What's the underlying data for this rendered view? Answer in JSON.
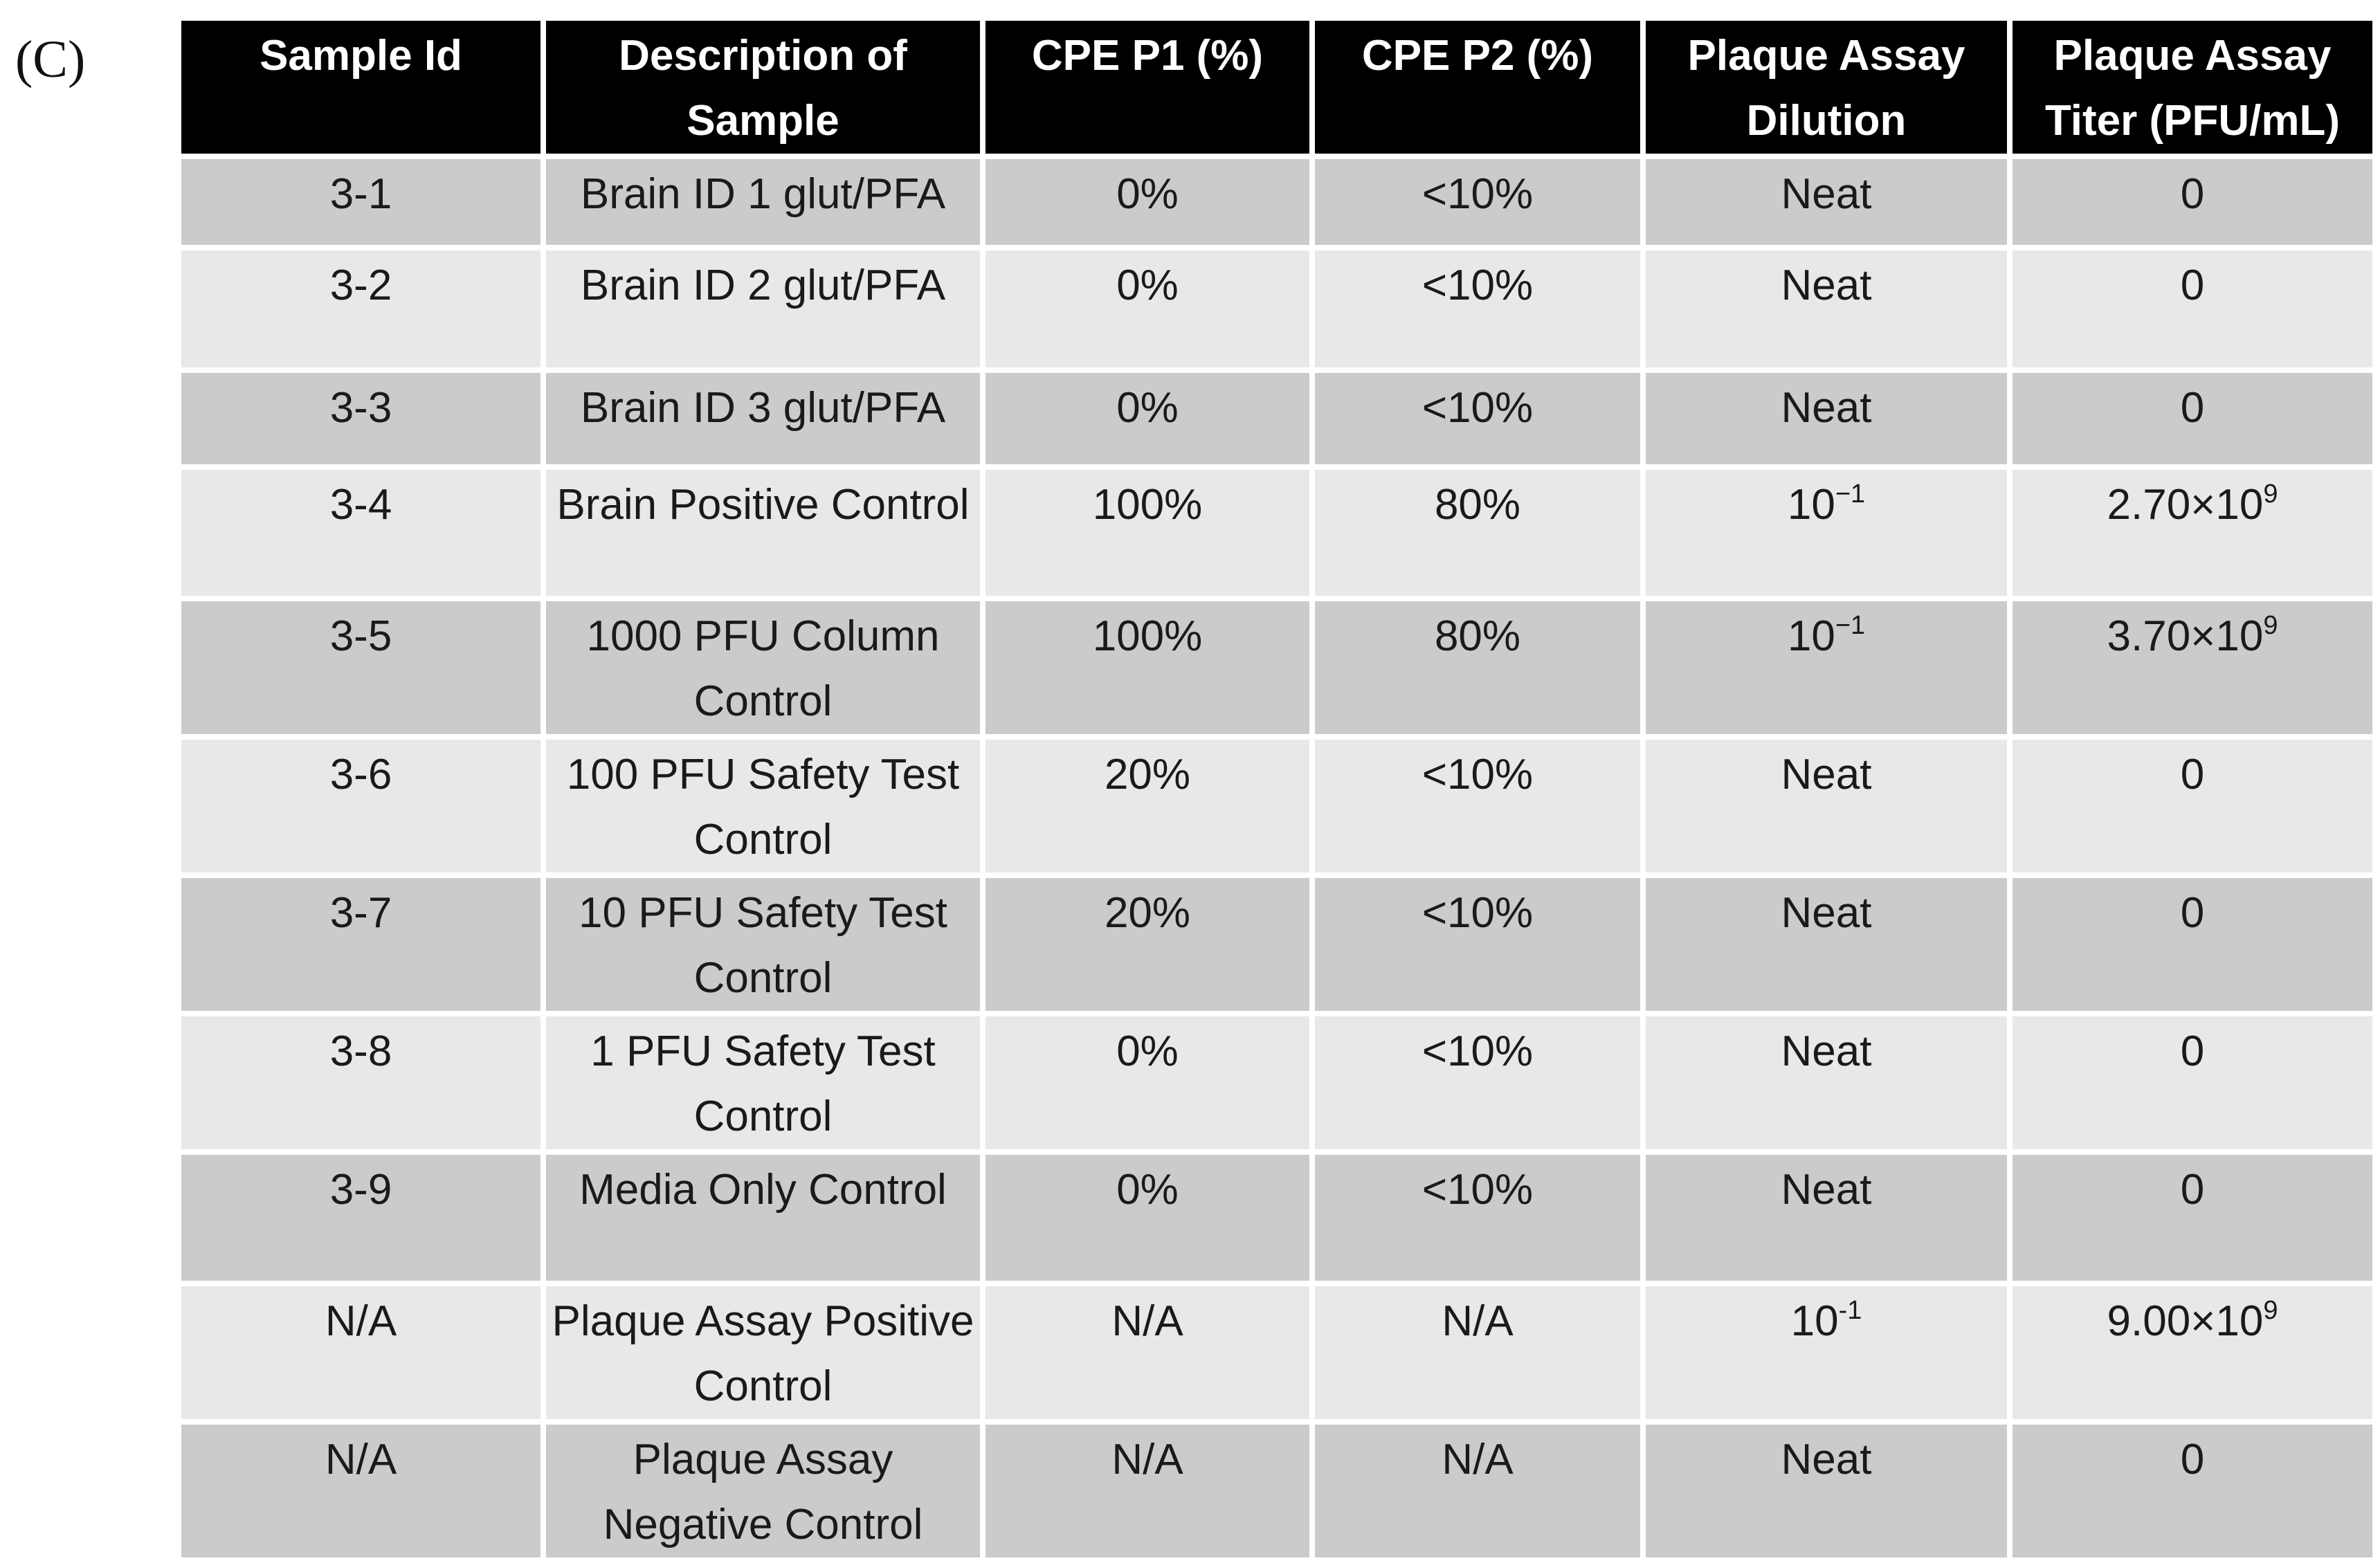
{
  "panel_label": "(C)",
  "columns": [
    "Sample Id",
    "Description of Sample",
    "CPE P1 (%)",
    "CPE P2 (%)",
    "Plaque Assay Dilution",
    "Plaque Assay Titer (PFU/mL)"
  ],
  "rows": [
    {
      "id": "3-1",
      "desc": "Brain ID 1 glut/PFA",
      "cpe1": "0%",
      "cpe2": "<10%",
      "dilution": "Neat",
      "dilution_exp": "",
      "titer": "0",
      "titer_exp": ""
    },
    {
      "id": "3-2",
      "desc": "Brain ID 2 glut/PFA",
      "cpe1": "0%",
      "cpe2": "<10%",
      "dilution": "Neat",
      "dilution_exp": "",
      "titer": "0",
      "titer_exp": ""
    },
    {
      "id": "3-3",
      "desc": "Brain ID 3 glut/PFA",
      "cpe1": "0%",
      "cpe2": "<10%",
      "dilution": "Neat",
      "dilution_exp": "",
      "titer": "0",
      "titer_exp": ""
    },
    {
      "id": "3-4",
      "desc": "Brain Positive Control",
      "cpe1": "100%",
      "cpe2": "80%",
      "dilution": "10",
      "dilution_exp": "−1",
      "titer": "2.70×10",
      "titer_exp": "9"
    },
    {
      "id": "3-5",
      "desc": "1000 PFU Column Control",
      "cpe1": "100%",
      "cpe2": "80%",
      "dilution": "10",
      "dilution_exp": "−1",
      "titer": "3.70×10",
      "titer_exp": "9"
    },
    {
      "id": "3-6",
      "desc": "100 PFU Safety Test Control",
      "cpe1": "20%",
      "cpe2": "<10%",
      "dilution": "Neat",
      "dilution_exp": "",
      "titer": "0",
      "titer_exp": ""
    },
    {
      "id": "3-7",
      "desc": "10 PFU Safety Test Control",
      "cpe1": "20%",
      "cpe2": "<10%",
      "dilution": "Neat",
      "dilution_exp": "",
      "titer": "0",
      "titer_exp": ""
    },
    {
      "id": "3-8",
      "desc": "1 PFU Safety Test Control",
      "cpe1": "0%",
      "cpe2": "<10%",
      "dilution": "Neat",
      "dilution_exp": "",
      "titer": "0",
      "titer_exp": ""
    },
    {
      "id": "3-9",
      "desc": "Media Only Control",
      "cpe1": "0%",
      "cpe2": "<10%",
      "dilution": "Neat",
      "dilution_exp": "",
      "titer": "0",
      "titer_exp": ""
    },
    {
      "id": "N/A",
      "desc": "Plaque Assay Positive Control",
      "cpe1": "N/A",
      "cpe2": "N/A",
      "dilution": "10",
      "dilution_exp": "-1",
      "titer": "9.00×10",
      "titer_exp": "9"
    },
    {
      "id": "N/A",
      "desc": "Plaque Assay Negative Control",
      "cpe1": "N/A",
      "cpe2": "N/A",
      "dilution": "Neat",
      "dilution_exp": "",
      "titer": "0",
      "titer_exp": ""
    }
  ],
  "colors": {
    "header_bg": "#000000",
    "header_text": "#ffffff",
    "row_dark": "#cbcbcb",
    "row_light": "#e8e8e8"
  }
}
